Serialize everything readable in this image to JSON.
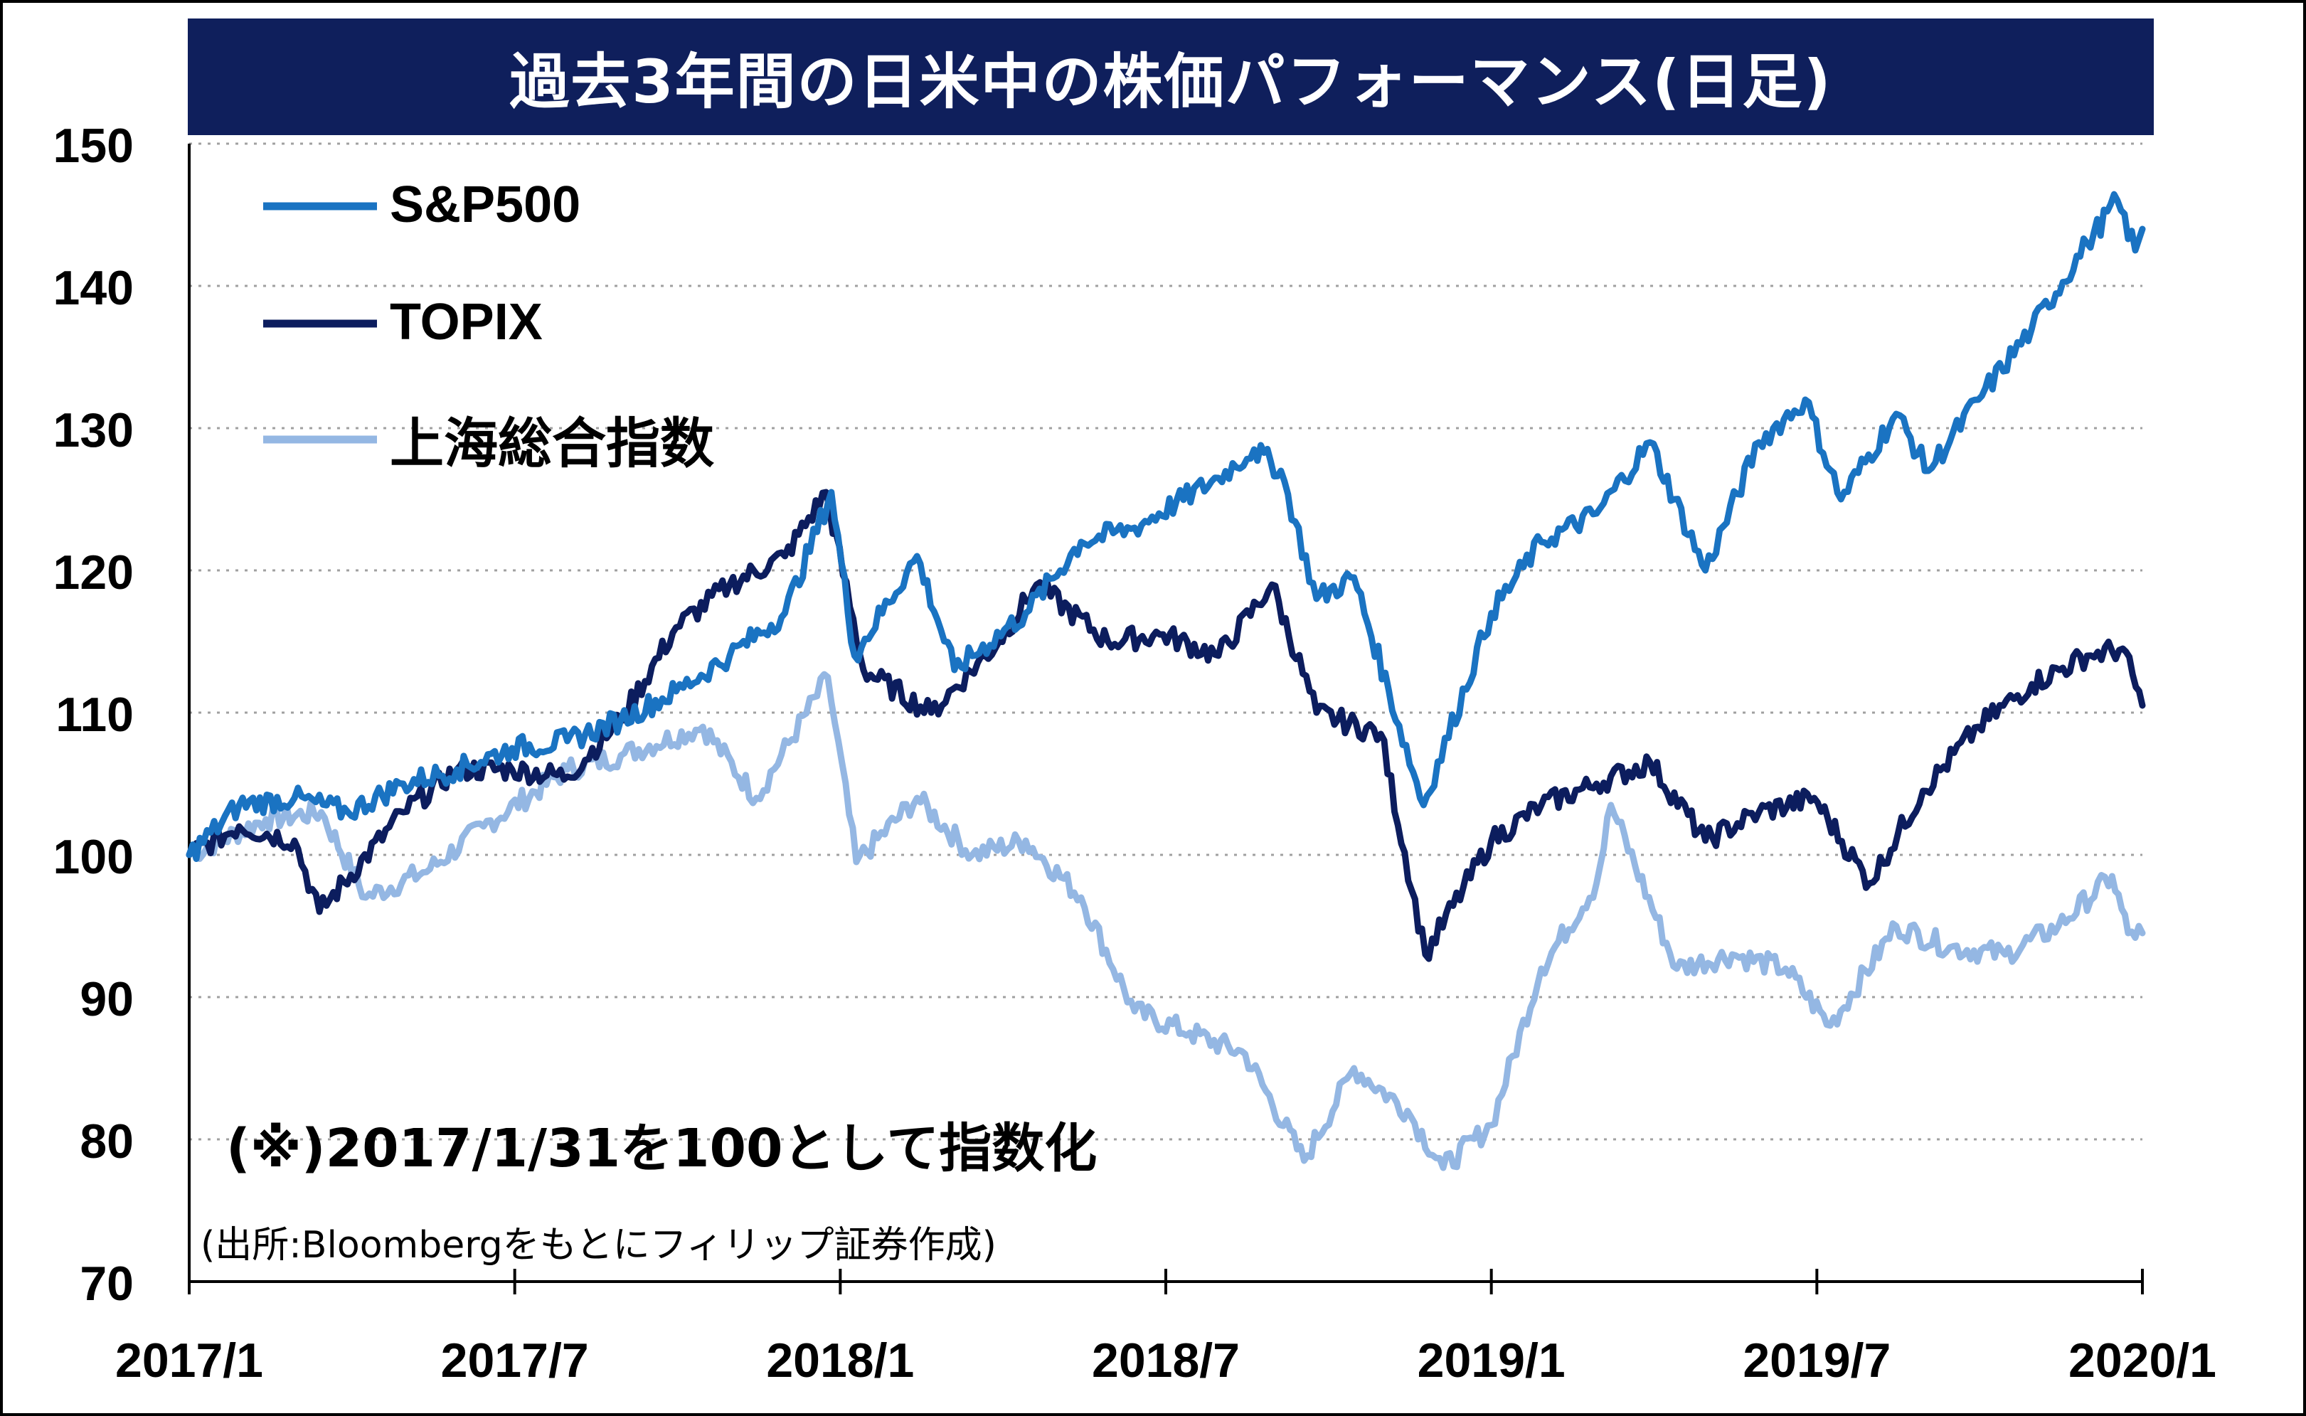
{
  "chart_title": "過去3年間の日米中の株価パフォーマンス(日足)",
  "note": "(※)2017/1/31を100として指数化",
  "source": "(出所:Bloombergをもとにフィリップ証券作成)",
  "colors": {
    "title_bg": "#0f1f5c",
    "sp500": "#1a73c2",
    "topix": "#0c1d5e",
    "shanghai": "#94b7e3",
    "grid": "#a0a0a0"
  },
  "chart_data": {
    "type": "line",
    "ylim": [
      70,
      150
    ],
    "y_ticks": [
      "70",
      "80",
      "90",
      "100",
      "110",
      "120",
      "130",
      "140",
      "150"
    ],
    "x_ticks": [
      "2017/1",
      "2017/7",
      "2018/1",
      "2018/7",
      "2019/1",
      "2019/7",
      "2020/1"
    ],
    "x_range": [
      "2017-01-31",
      "2020-01-31"
    ],
    "grid": "horizontal dotted",
    "legend_position": "top-left",
    "series": [
      {
        "name": "S&P500",
        "color_key": "sp500",
        "points": [
          [
            "2017-01-31",
            100
          ],
          [
            "2017-02-28",
            103.5
          ],
          [
            "2017-03-31",
            104
          ],
          [
            "2017-04-30",
            103
          ],
          [
            "2017-05-31",
            105
          ],
          [
            "2017-06-30",
            106
          ],
          [
            "2017-07-31",
            107.5
          ],
          [
            "2017-08-31",
            108
          ],
          [
            "2017-09-30",
            109.5
          ],
          [
            "2017-10-31",
            111.5
          ],
          [
            "2017-11-30",
            114
          ],
          [
            "2017-12-31",
            117
          ],
          [
            "2018-01-26",
            125.5
          ],
          [
            "2018-02-08",
            114
          ],
          [
            "2018-03-15",
            121
          ],
          [
            "2018-04-05",
            113
          ],
          [
            "2018-05-15",
            117
          ],
          [
            "2018-06-15",
            122
          ],
          [
            "2018-07-15",
            123
          ],
          [
            "2018-08-31",
            126.5
          ],
          [
            "2018-09-20",
            128.5
          ],
          [
            "2018-10-05",
            127
          ],
          [
            "2018-10-25",
            118
          ],
          [
            "2018-11-15",
            119.5
          ],
          [
            "2018-12-24",
            103.5
          ],
          [
            "2019-01-31",
            117
          ],
          [
            "2019-02-28",
            122
          ],
          [
            "2019-03-31",
            124
          ],
          [
            "2019-04-30",
            129
          ],
          [
            "2019-05-31",
            120
          ],
          [
            "2019-06-30",
            129
          ],
          [
            "2019-07-26",
            132
          ],
          [
            "2019-08-15",
            125
          ],
          [
            "2019-09-15",
            131
          ],
          [
            "2019-10-03",
            127
          ],
          [
            "2019-10-31",
            132
          ],
          [
            "2019-11-30",
            137
          ],
          [
            "2019-12-31",
            143
          ],
          [
            "2020-01-17",
            146
          ],
          [
            "2020-01-27",
            142.5
          ],
          [
            "2020-01-31",
            144
          ]
        ]
      },
      {
        "name": "TOPIX",
        "color_key": "topix",
        "points": [
          [
            "2017-01-31",
            100
          ],
          [
            "2017-02-28",
            102
          ],
          [
            "2017-03-31",
            101
          ],
          [
            "2017-04-14",
            96
          ],
          [
            "2017-05-31",
            103
          ],
          [
            "2017-06-30",
            106
          ],
          [
            "2017-07-31",
            106
          ],
          [
            "2017-08-31",
            105.5
          ],
          [
            "2017-09-30",
            109.5
          ],
          [
            "2017-10-31",
            116
          ],
          [
            "2017-11-30",
            119
          ],
          [
            "2017-12-31",
            121
          ],
          [
            "2018-01-23",
            125.5
          ],
          [
            "2018-02-13",
            113
          ],
          [
            "2018-03-23",
            110
          ],
          [
            "2018-04-30",
            115
          ],
          [
            "2018-05-21",
            119
          ],
          [
            "2018-06-30",
            115
          ],
          [
            "2018-07-31",
            115.5
          ],
          [
            "2018-08-31",
            114
          ],
          [
            "2018-09-30",
            119
          ],
          [
            "2018-10-25",
            110
          ],
          [
            "2018-11-30",
            108.5
          ],
          [
            "2018-12-25",
            93
          ],
          [
            "2019-01-31",
            101
          ],
          [
            "2019-02-28",
            103.5
          ],
          [
            "2019-03-31",
            105
          ],
          [
            "2019-04-30",
            106.5
          ],
          [
            "2019-05-31",
            101
          ],
          [
            "2019-06-30",
            103
          ],
          [
            "2019-07-31",
            104
          ],
          [
            "2019-08-31",
            98
          ],
          [
            "2019-09-30",
            104.5
          ],
          [
            "2019-10-31",
            109
          ],
          [
            "2019-11-30",
            112
          ],
          [
            "2019-12-31",
            114
          ],
          [
            "2020-01-20",
            114.5
          ],
          [
            "2020-01-31",
            110.5
          ]
        ]
      },
      {
        "name": "上海総合指数",
        "color_key": "shanghai",
        "points": [
          [
            "2017-01-31",
            100
          ],
          [
            "2017-03-15",
            102.5
          ],
          [
            "2017-04-15",
            103
          ],
          [
            "2017-05-10",
            97
          ],
          [
            "2017-06-15",
            99
          ],
          [
            "2017-07-15",
            102
          ],
          [
            "2017-08-31",
            106
          ],
          [
            "2017-09-30",
            107
          ],
          [
            "2017-11-15",
            109
          ],
          [
            "2017-12-15",
            104
          ],
          [
            "2018-01-24",
            112.5
          ],
          [
            "2018-02-09",
            99.5
          ],
          [
            "2018-03-15",
            104
          ],
          [
            "2018-04-15",
            100
          ],
          [
            "2018-05-15",
            101
          ],
          [
            "2018-06-15",
            97
          ],
          [
            "2018-07-15",
            89
          ],
          [
            "2018-08-15",
            87.5
          ],
          [
            "2018-09-15",
            86
          ],
          [
            "2018-10-18",
            78.5
          ],
          [
            "2018-11-15",
            85
          ],
          [
            "2018-12-15",
            82
          ],
          [
            "2019-01-04",
            78
          ],
          [
            "2019-01-31",
            81
          ],
          [
            "2019-02-28",
            92
          ],
          [
            "2019-03-31",
            98
          ],
          [
            "2019-04-08",
            103.5
          ],
          [
            "2019-05-15",
            92
          ],
          [
            "2019-06-15",
            93
          ],
          [
            "2019-07-15",
            92
          ],
          [
            "2019-08-09",
            88
          ],
          [
            "2019-09-15",
            95
          ],
          [
            "2019-10-15",
            93.5
          ],
          [
            "2019-11-15",
            93
          ],
          [
            "2019-12-15",
            95
          ],
          [
            "2020-01-14",
            98.5
          ],
          [
            "2020-01-23",
            94.5
          ],
          [
            "2020-01-31",
            94.5
          ]
        ]
      }
    ]
  }
}
